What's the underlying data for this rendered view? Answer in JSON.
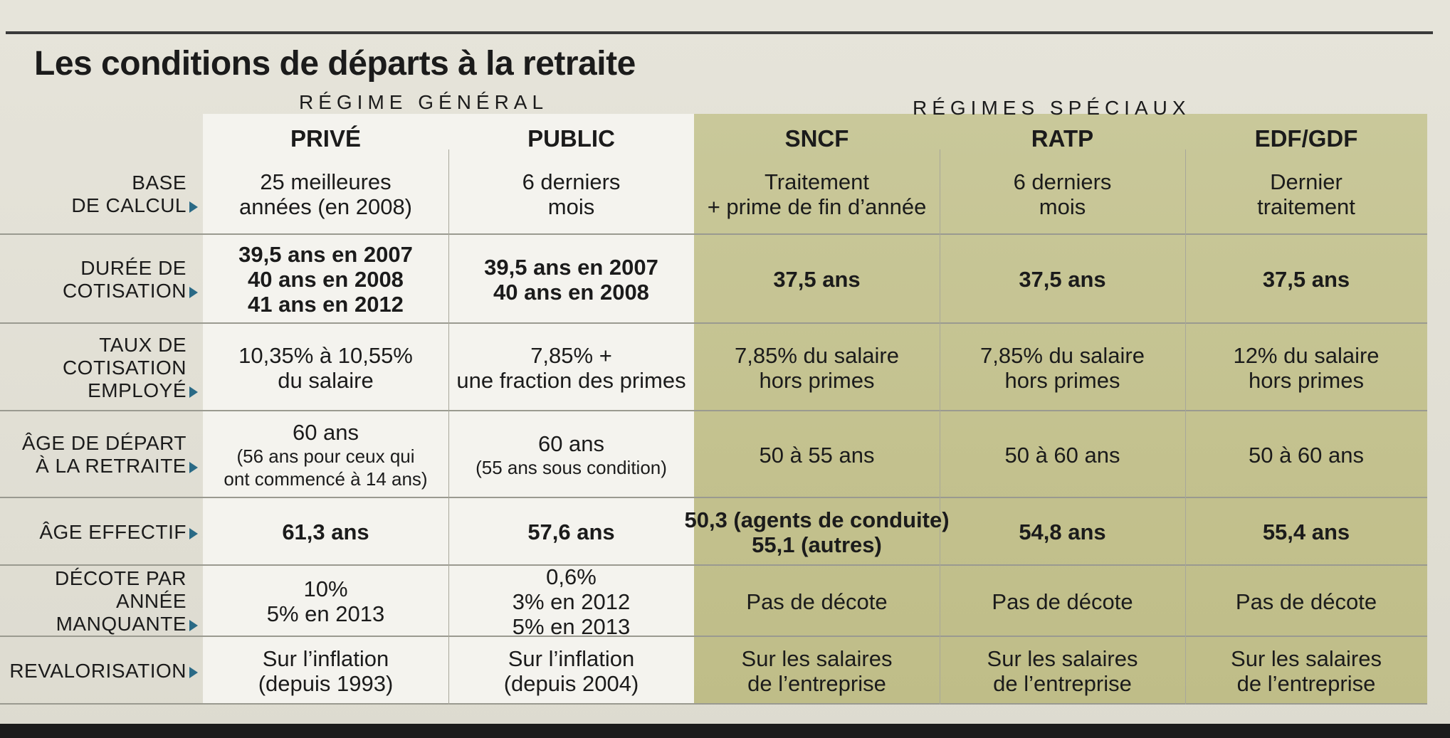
{
  "title": "Les conditions de départs à la retraite",
  "regimes": {
    "general": "RÉGIME GÉNÉRAL",
    "speciaux": "RÉGIMES SPÉCIAUX"
  },
  "columns": [
    "PRIVÉ",
    "PUBLIC",
    "SNCF",
    "RATP",
    "EDF/GDF"
  ],
  "rows": [
    {
      "label": [
        "BASE",
        "DE CALCUL"
      ],
      "cells": [
        [
          "25 meilleures",
          "années (en 2008)"
        ],
        [
          "6 derniers",
          "mois"
        ],
        [
          "Traitement",
          "+ prime de fin d’année"
        ],
        [
          "6 derniers",
          "mois"
        ],
        [
          "Dernier",
          "traitement"
        ]
      ]
    },
    {
      "label": [
        "DURÉE DE",
        "COTISATION"
      ],
      "cells": [
        [
          "39,5 ans en 2007",
          "40 ans en 2008",
          "41 ans en 2012"
        ],
        [
          "39,5 ans en 2007",
          "40 ans en 2008"
        ],
        [
          "37,5 ans"
        ],
        [
          "37,5 ans"
        ],
        [
          "37,5 ans"
        ]
      ]
    },
    {
      "label": [
        "TAUX DE",
        "COTISATION",
        "EMPLOYÉ"
      ],
      "cells": [
        [
          "10,35% à 10,55%",
          "du salaire"
        ],
        [
          "7,85% +",
          "une fraction des primes"
        ],
        [
          "7,85% du salaire",
          "hors primes"
        ],
        [
          "7,85% du salaire",
          "hors primes"
        ],
        [
          "12% du salaire",
          "hors primes"
        ]
      ]
    },
    {
      "label": [
        "ÂGE DE DÉPART",
        "À LA RETRAITE"
      ],
      "cells": [
        [
          "60 ans",
          "(56 ans pour ceux qui",
          "ont commencé à 14 ans)"
        ],
        [
          "60 ans",
          "(55 ans sous condition)"
        ],
        [
          "50 à 55 ans"
        ],
        [
          "50 à 60 ans"
        ],
        [
          "50 à 60 ans"
        ]
      ]
    },
    {
      "label": [
        "ÂGE EFFECTIF"
      ],
      "cells": [
        [
          "61,3 ans"
        ],
        [
          "57,6 ans"
        ],
        [
          "50,3 (agents de conduite)",
          "55,1 (autres)"
        ],
        [
          "54,8 ans"
        ],
        [
          "55,4 ans"
        ]
      ]
    },
    {
      "label": [
        "DÉCOTE PAR",
        "ANNÉE",
        "MANQUANTE"
      ],
      "cells": [
        [
          "10%",
          "5% en 2013"
        ],
        [
          "0,6%",
          "3% en 2012",
          "5% en 2013"
        ],
        [
          "Pas de décote"
        ],
        [
          "Pas de décote"
        ],
        [
          "Pas de décote"
        ]
      ]
    },
    {
      "label": [
        "REVALORISATION"
      ],
      "cells": [
        [
          "Sur l’inflation",
          "(depuis 1993)"
        ],
        [
          "Sur l’inflation",
          "(depuis 2004)"
        ],
        [
          "Sur les salaires",
          "de l’entreprise"
        ],
        [
          "Sur les salaires",
          "de l’entreprise"
        ],
        [
          "Sur les salaires",
          "de l’entreprise"
        ]
      ]
    }
  ]
}
